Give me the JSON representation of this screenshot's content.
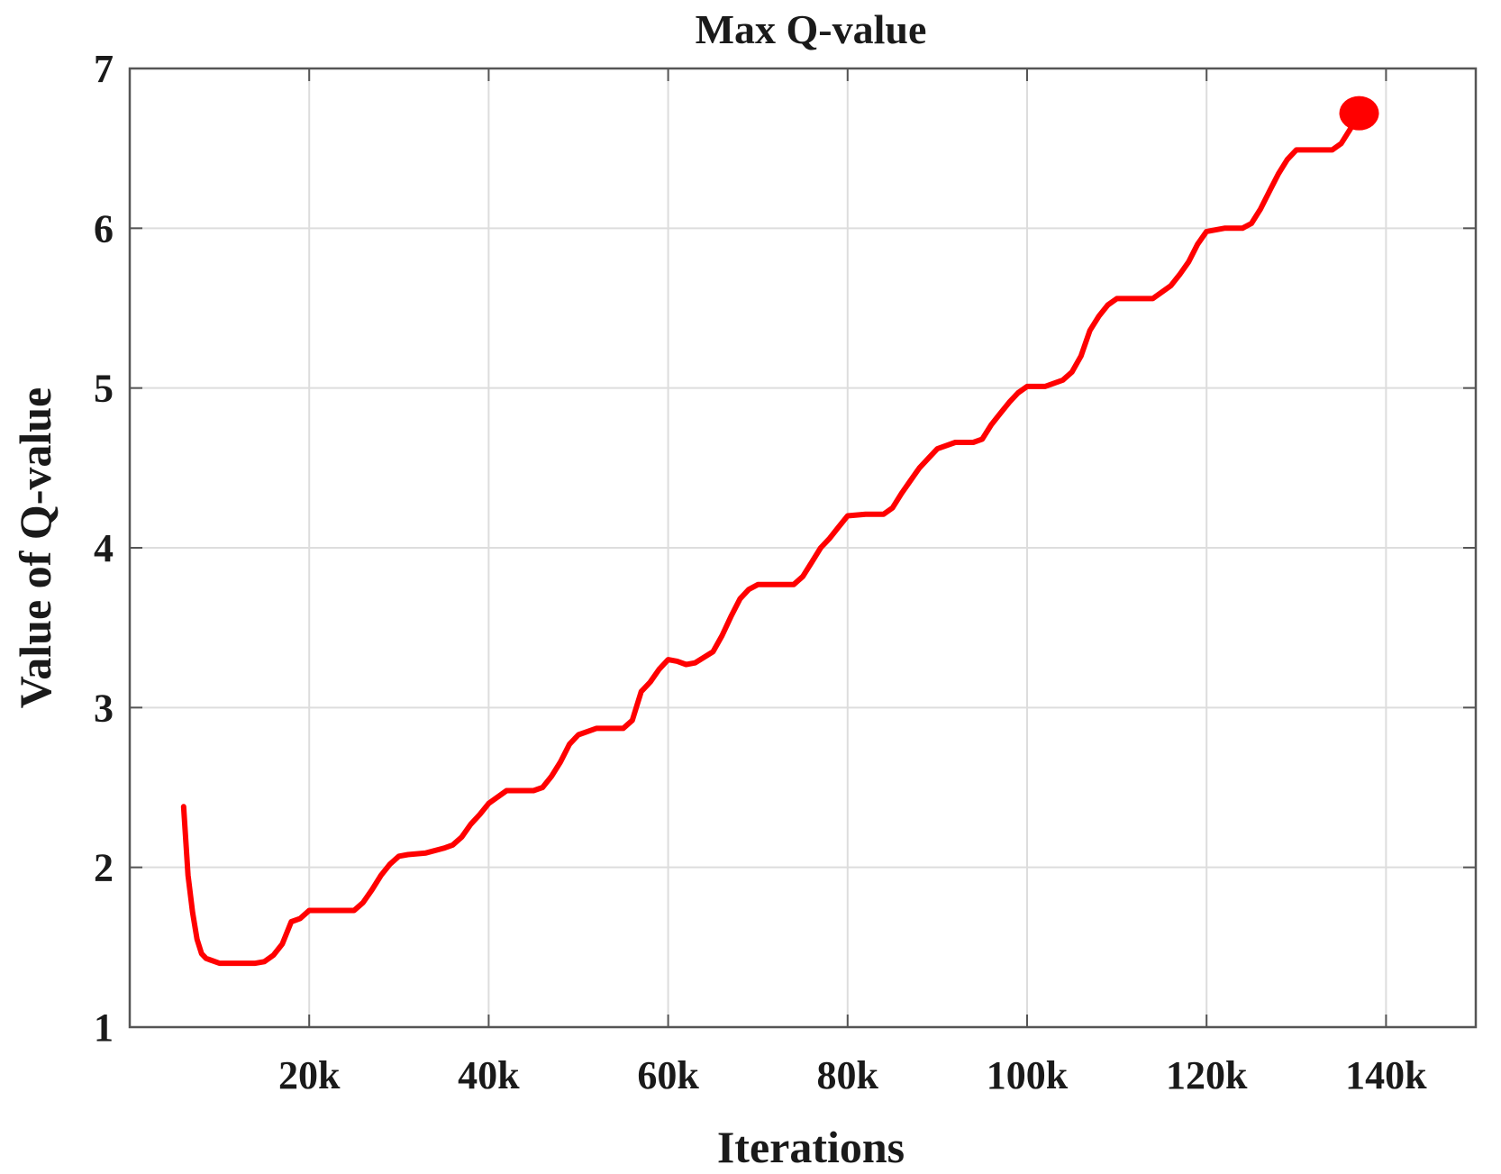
{
  "chart_data": {
    "type": "line",
    "title": "Max Q-value",
    "xlabel": "Iterations",
    "ylabel": "Value of Q-value",
    "xlim": [
      0,
      150000
    ],
    "ylim": [
      1,
      7
    ],
    "grid": true,
    "xticks": [
      20000,
      40000,
      60000,
      80000,
      100000,
      120000,
      140000
    ],
    "xtick_labels": [
      "20k",
      "40k",
      "60k",
      "80k",
      "100k",
      "120k",
      "140k"
    ],
    "yticks": [
      1,
      2,
      3,
      4,
      5,
      6,
      7
    ],
    "ytick_labels": [
      "1",
      "2",
      "3",
      "4",
      "5",
      "6",
      "7"
    ],
    "series": [
      {
        "color": "#ff0000",
        "x": [
          6000,
          6500,
          7000,
          7500,
          8000,
          8500,
          9000,
          10000,
          11000,
          12000,
          13000,
          14000,
          15000,
          16000,
          17000,
          18000,
          19000,
          20000,
          22000,
          24000,
          25000,
          26000,
          27000,
          28000,
          29000,
          30000,
          31000,
          33000,
          35000,
          36000,
          37000,
          38000,
          39000,
          40000,
          42000,
          45000,
          46000,
          47000,
          48000,
          49000,
          50000,
          52000,
          55000,
          56000,
          57000,
          58000,
          59000,
          60000,
          61000,
          62000,
          63000,
          65000,
          66000,
          67000,
          68000,
          69000,
          70000,
          72000,
          74000,
          75000,
          76000,
          77000,
          78000,
          79000,
          80000,
          82000,
          84000,
          85000,
          86000,
          87000,
          88000,
          89000,
          90000,
          92000,
          94000,
          95000,
          96000,
          97000,
          98000,
          99000,
          100000,
          102000,
          104000,
          105000,
          106000,
          107000,
          108000,
          109000,
          110000,
          112000,
          114000,
          115000,
          116000,
          117000,
          118000,
          119000,
          120000,
          122000,
          124000,
          125000,
          126000,
          127000,
          128000,
          129000,
          130000,
          132000,
          134000,
          135000,
          136000,
          137000
        ],
        "values": [
          2.38,
          1.95,
          1.72,
          1.55,
          1.46,
          1.43,
          1.42,
          1.4,
          1.4,
          1.4,
          1.4,
          1.4,
          1.41,
          1.45,
          1.52,
          1.66,
          1.68,
          1.73,
          1.73,
          1.73,
          1.73,
          1.78,
          1.86,
          1.95,
          2.02,
          2.07,
          2.08,
          2.09,
          2.12,
          2.14,
          2.19,
          2.27,
          2.33,
          2.4,
          2.48,
          2.48,
          2.5,
          2.57,
          2.66,
          2.77,
          2.83,
          2.87,
          2.87,
          2.92,
          3.1,
          3.16,
          3.24,
          3.3,
          3.29,
          3.27,
          3.28,
          3.35,
          3.45,
          3.57,
          3.68,
          3.74,
          3.77,
          3.77,
          3.77,
          3.82,
          3.91,
          4.0,
          4.06,
          4.13,
          4.2,
          4.21,
          4.21,
          4.25,
          4.34,
          4.42,
          4.5,
          4.56,
          4.62,
          4.66,
          4.66,
          4.68,
          4.77,
          4.84,
          4.91,
          4.97,
          5.01,
          5.01,
          5.05,
          5.1,
          5.2,
          5.36,
          5.45,
          5.52,
          5.56,
          5.56,
          5.56,
          5.6,
          5.64,
          5.71,
          5.79,
          5.9,
          5.98,
          6.0,
          6.0,
          6.03,
          6.12,
          6.23,
          6.34,
          6.43,
          6.49,
          6.49,
          6.49,
          6.53,
          6.62,
          6.72
        ]
      }
    ]
  }
}
